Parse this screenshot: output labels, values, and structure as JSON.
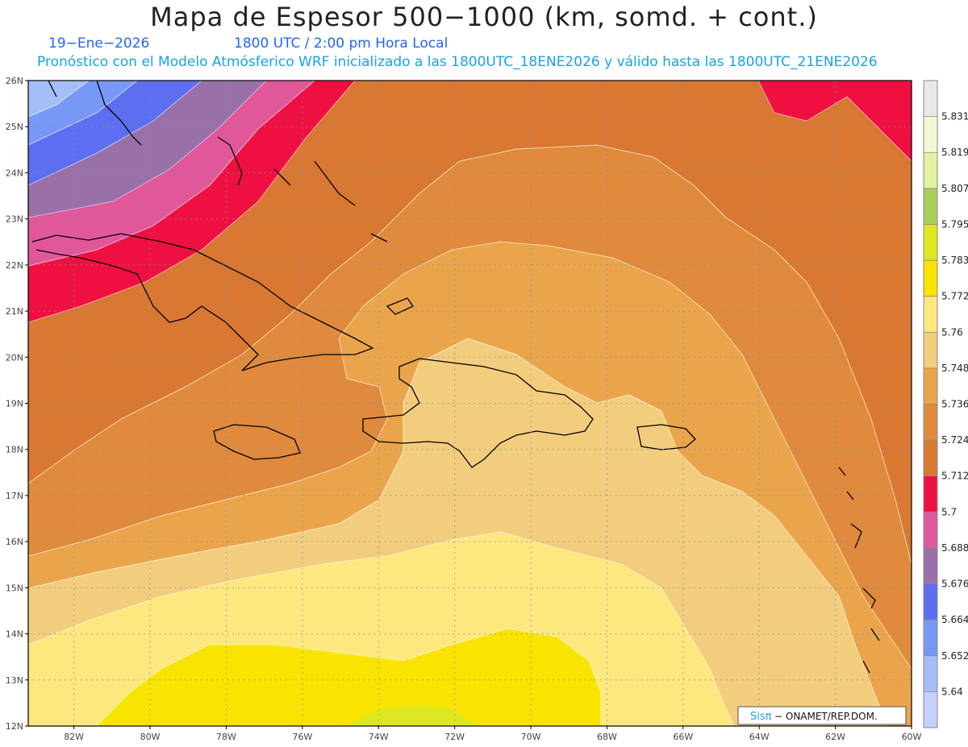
{
  "header": {
    "title": "Mapa de Espesor 500−1000 (km, somd. + cont.)",
    "date": "19−Ene−2026",
    "time": "1800 UTC / 2:00 pm Hora Local",
    "model_line": "Pronóstico con el Modelo Atmósferico WRF inicializado a las 1800UTC_18ENE2026 y válido hasta las  1800UTC_21ENE2026"
  },
  "map": {
    "lat_labels": [
      "26N",
      "25N",
      "24N",
      "23N",
      "22N",
      "21N",
      "20N",
      "19N",
      "18N",
      "17N",
      "16N",
      "15N",
      "14N",
      "13N",
      "12N"
    ],
    "lon_labels": [
      "82W",
      "80W",
      "78W",
      "76W",
      "74W",
      "72W",
      "70W",
      "68W",
      "66W",
      "64W",
      "62W",
      "60W"
    ],
    "lat_range": [
      12,
      26
    ],
    "lon_range": [
      -83.2,
      -60
    ],
    "grid": "dotted",
    "credit": {
      "brand": "Sisπ",
      "org": "− ONAMET/REP.DOM."
    }
  },
  "colorbar": {
    "position": "right",
    "levels": [
      "5.831",
      "5.819",
      "5.807",
      "5.795",
      "5.783",
      "5.772",
      "5.76",
      "5.748",
      "5.736",
      "5.724",
      "5.712",
      "5.7",
      "5.688",
      "5.676",
      "5.664",
      "5.652",
      "5.64"
    ],
    "colors": [
      "#e8e8e8",
      "#f2f8d6",
      "#e2f2a0",
      "#aacc5a",
      "#dde820",
      "#f8e400",
      "#fde880",
      "#f2cd7e",
      "#eaa54c",
      "#df8a3c",
      "#d87832",
      "#ee1040",
      "#e0589a",
      "#9a70a8",
      "#5e6ef0",
      "#7898f6",
      "#a4bef8",
      "#c6d0fc"
    ]
  }
}
